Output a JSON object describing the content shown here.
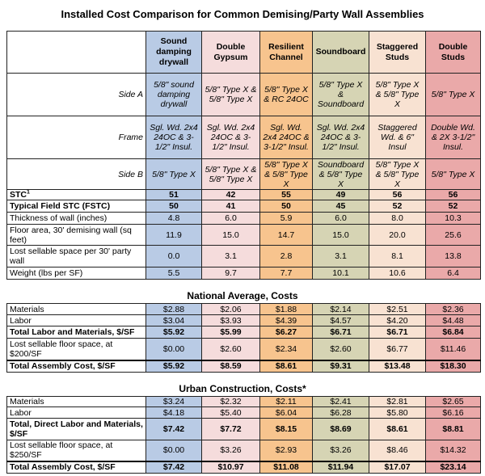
{
  "title": "Installed Cost Comparison for Common Demising/Party Wall Assemblies",
  "columns": [
    "Sound damping drywall",
    "Double Gypsum",
    "Resilient Channel",
    "Soundboard",
    "Staggered Studs",
    "Double Studs"
  ],
  "column_colors": [
    "#b9cbe5",
    "#f5dcdc",
    "#f7c48e",
    "#d6d4b4",
    "#f8e2d2",
    "#eaa9a9"
  ],
  "assembly_table": {
    "rows": [
      {
        "label": "Side A",
        "italic": true,
        "cells": [
          "5/8\" sound damping drywall",
          "5/8\" Type X & 5/8\" Type X",
          "5/8\" Type X & RC 24OC",
          "5/8\" Type X & Soundboard",
          "5/8\" Type X & 5/8\" Type X",
          "5/8\" Type X"
        ]
      },
      {
        "label": "Frame",
        "italic": true,
        "cells": [
          "Sgl. Wd. 2x4 24OC & 3-1/2\" Insul.",
          "Sgl. Wd. 2x4 24OC & 3-1/2\" Insul.",
          "Sgl. Wd. 2x4 24OC & 3-1/2\" Insul.",
          "Sgl. Wd. 2x4 24OC & 3-1/2\" Insul.",
          "Staggered Wd. & 6\" Insul",
          "Double Wd. & 2X 3-1/2\" Insul."
        ]
      },
      {
        "label": "Side B",
        "italic": true,
        "cells": [
          "5/8\" Type X",
          "5/8\" Type X & 5/8\" Type X",
          "5/8\" Type X & 5/8\" Type X",
          "Soundboard & 5/8\" Type X",
          "5/8\" Type X & 5/8\" Type X",
          "5/8\" Type X"
        ]
      },
      {
        "label": "STC",
        "label_sup": "1",
        "bold": true,
        "cells": [
          "51",
          "42",
          "55",
          "49",
          "56",
          "56"
        ]
      },
      {
        "label": "Typical Field STC (FSTC)",
        "bold": true,
        "cells": [
          "50",
          "41",
          "50",
          "45",
          "52",
          "52"
        ]
      },
      {
        "label": "Thickness of wall (inches)",
        "cells": [
          "4.8",
          "6.0",
          "5.9",
          "6.0",
          "8.0",
          "10.3"
        ]
      },
      {
        "label": "Floor area, 30' demising wall (sq feet)",
        "cells": [
          "11.9",
          "15.0",
          "14.7",
          "15.0",
          "20.0",
          "25.6"
        ]
      },
      {
        "label": "Lost sellable space per 30' party wall",
        "cells": [
          "0.0",
          "3.1",
          "2.8",
          "3.1",
          "8.1",
          "13.8"
        ]
      },
      {
        "label": "Weight (lbs per SF)",
        "cells": [
          "5.5",
          "9.7",
          "7.7",
          "10.1",
          "10.6",
          "6.4"
        ]
      }
    ]
  },
  "national": {
    "heading": "National Average, Costs",
    "rows": [
      {
        "label": "Materials",
        "cells": [
          "$2.88",
          "$2.06",
          "$1.88",
          "$2.14",
          "$2.51",
          "$2.36"
        ]
      },
      {
        "label": "Labor",
        "cells": [
          "$3.04",
          "$3.93",
          "$4.39",
          "$4.57",
          "$4.20",
          "$4.48"
        ]
      },
      {
        "label": "Total Labor and Materials, $/SF",
        "bold": true,
        "cells": [
          "$5.92",
          "$5.99",
          "$6.27",
          "$6.71",
          "$6.71",
          "$6.84"
        ]
      },
      {
        "label": "Lost sellable floor space, at $200/SF",
        "cells": [
          "$0.00",
          "$2.60",
          "$2.34",
          "$2.60",
          "$6.77",
          "$11.46"
        ]
      },
      {
        "label": "Total Assembly Cost, $/SF",
        "bold": true,
        "cells": [
          "$5.92",
          "$8.59",
          "$8.61",
          "$9.31",
          "$13.48",
          "$18.30"
        ]
      }
    ]
  },
  "urban": {
    "heading": "Urban Construction, Costs*",
    "rows": [
      {
        "label": "Materials",
        "cells": [
          "$3.24",
          "$2.32",
          "$2.11",
          "$2.41",
          "$2.81",
          "$2.65"
        ]
      },
      {
        "label": "Labor",
        "cells": [
          "$4.18",
          "$5.40",
          "$6.04",
          "$6.28",
          "$5.80",
          "$6.16"
        ]
      },
      {
        "label": "Total, Direct Labor and Materials, $/SF",
        "bold": true,
        "cells": [
          "$7.42",
          "$7.72",
          "$8.15",
          "$8.69",
          "$8.61",
          "$8.81"
        ]
      },
      {
        "label": "Lost sellable floor space, at $250/SF",
        "cells": [
          "$0.00",
          "$3.26",
          "$2.93",
          "$3.26",
          "$8.46",
          "$14.32"
        ]
      },
      {
        "label": "Total Assembly Cost, $/SF",
        "bold": true,
        "cells": [
          "$7.42",
          "$10.97",
          "$11.08",
          "$11.94",
          "$17.07",
          "$23.14"
        ]
      }
    ]
  }
}
